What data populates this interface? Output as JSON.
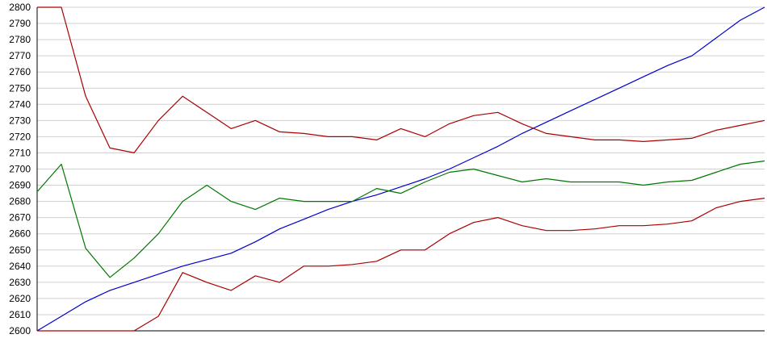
{
  "chart_data": {
    "type": "line",
    "title": "",
    "xlabel": "",
    "ylabel": "",
    "ylim": [
      2600,
      2800
    ],
    "yticks": [
      2600,
      2610,
      2620,
      2630,
      2640,
      2650,
      2660,
      2670,
      2680,
      2690,
      2700,
      2710,
      2720,
      2730,
      2740,
      2750,
      2760,
      2770,
      2780,
      2790,
      2800
    ],
    "grid": "horizontal",
    "legend": "none",
    "x_points": 31,
    "series": [
      {
        "color": "#0000cc",
        "values": [
          2600,
          2609,
          2618,
          2625,
          2630,
          2635,
          2640,
          2644,
          2648,
          2655,
          2663,
          2669,
          2675,
          2680,
          2684,
          2689,
          2694,
          2700,
          2707,
          2714,
          2722,
          2729,
          2736,
          2743,
          2750,
          2757,
          2764,
          2770,
          2781,
          2792,
          2800
        ]
      },
      {
        "color": "#aa0000",
        "values": [
          2800,
          2800,
          2745,
          2713,
          2710,
          2730,
          2745,
          2735,
          2725,
          2730,
          2723,
          2722,
          2720,
          2720,
          2718,
          2725,
          2720,
          2728,
          2733,
          2735,
          2728,
          2722,
          2720,
          2718,
          2718,
          2717,
          2718,
          2719,
          2724,
          2727,
          2730
        ]
      },
      {
        "color": "#007700",
        "values": [
          2686,
          2703,
          2651,
          2633,
          2645,
          2660,
          2680,
          2690,
          2680,
          2675,
          2682,
          2680,
          2680,
          2680,
          2688,
          2685,
          2692,
          2698,
          2700,
          2696,
          2692,
          2694,
          2692,
          2692,
          2692,
          2690,
          2692,
          2693,
          2698,
          2703,
          2705
        ]
      },
      {
        "color": "#aa0000",
        "values": [
          2600,
          2600,
          2600,
          2600,
          2600,
          2609,
          2636,
          2630,
          2625,
          2634,
          2630,
          2640,
          2640,
          2641,
          2643,
          2650,
          2650,
          2660,
          2667,
          2670,
          2665,
          2662,
          2662,
          2663,
          2665,
          2665,
          2666,
          2668,
          2676,
          2680,
          2682
        ]
      }
    ]
  }
}
